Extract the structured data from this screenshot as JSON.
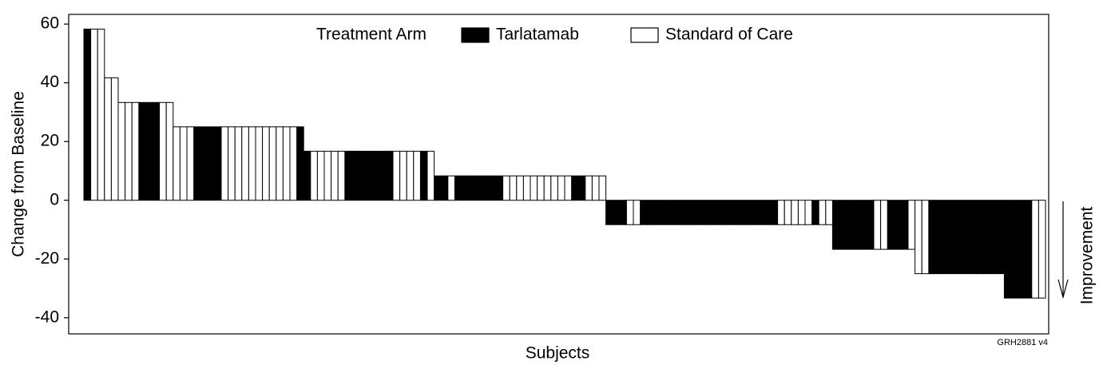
{
  "chart_data": {
    "type": "bar",
    "y_label": "Change from Baseline",
    "x_label": "Subjects",
    "legend_title": "Treatment Arm",
    "annotations": [
      "Improvement",
      "GRH2881 v4"
    ],
    "ylim": [
      -45.5,
      63.3
    ],
    "yticks": [
      -40,
      -20,
      0,
      20,
      40,
      60
    ],
    "series": [
      {
        "name": "Tarlatamab",
        "color": "#000000",
        "values": [
          58.3,
          null,
          null,
          null,
          null,
          null,
          null,
          null,
          33.3,
          33.3,
          33.3,
          null,
          null,
          null,
          null,
          null,
          25,
          25,
          25,
          25,
          null,
          null,
          null,
          null,
          null,
          null,
          null,
          null,
          null,
          null,
          null,
          25,
          16.7,
          null,
          null,
          null,
          null,
          null,
          16.7,
          16.7,
          16.7,
          16.7,
          16.7,
          16.7,
          16.7,
          null,
          null,
          null,
          null,
          16.7,
          null,
          8.3,
          8.3,
          null,
          8.3,
          8.3,
          8.3,
          8.3,
          8.3,
          8.3,
          8.3,
          null,
          null,
          null,
          null,
          null,
          null,
          null,
          null,
          null,
          null,
          8.3,
          8.3,
          null,
          null,
          null,
          -8.3,
          -8.3,
          -8.3,
          null,
          null,
          -8.3,
          -8.3,
          -8.3,
          -8.3,
          -8.3,
          -8.3,
          -8.3,
          -8.3,
          -8.3,
          -8.3,
          -8.3,
          -8.3,
          -8.3,
          -8.3,
          -8.3,
          -8.3,
          -8.3,
          -8.3,
          -8.3,
          -8.3,
          null,
          null,
          null,
          null,
          null,
          -8.3,
          null,
          null,
          -16.7,
          -16.7,
          -16.7,
          -16.7,
          -16.7,
          -16.7,
          null,
          null,
          -16.7,
          -16.7,
          -16.7,
          null,
          null,
          null,
          -25,
          -25,
          -25,
          -25,
          -25,
          -25,
          -25,
          -25,
          -25,
          -25,
          -25,
          -33.3,
          -33.3,
          -33.3,
          -33.3,
          null,
          null
        ]
      },
      {
        "name": "Standard of Care",
        "color": "#ffffff",
        "values": [
          null,
          58.3,
          58.3,
          41.7,
          41.7,
          33.3,
          33.3,
          33.3,
          null,
          null,
          null,
          33.3,
          33.3,
          25,
          25,
          25,
          null,
          null,
          null,
          null,
          25,
          25,
          25,
          25,
          25,
          25,
          25,
          25,
          25,
          25,
          25,
          null,
          null,
          16.7,
          16.7,
          16.7,
          16.7,
          16.7,
          null,
          null,
          null,
          null,
          null,
          null,
          null,
          16.7,
          16.7,
          16.7,
          16.7,
          null,
          16.7,
          null,
          null,
          8.3,
          null,
          null,
          null,
          null,
          null,
          null,
          null,
          8.3,
          8.3,
          8.3,
          8.3,
          8.3,
          8.3,
          8.3,
          8.3,
          8.3,
          8.3,
          null,
          null,
          8.3,
          8.3,
          8.3,
          null,
          null,
          null,
          -8.3,
          -8.3,
          null,
          null,
          null,
          null,
          null,
          null,
          null,
          null,
          null,
          null,
          null,
          null,
          null,
          null,
          null,
          null,
          null,
          null,
          null,
          null,
          -8.3,
          -8.3,
          -8.3,
          -8.3,
          -8.3,
          null,
          -8.3,
          -8.3,
          null,
          null,
          null,
          null,
          null,
          null,
          -16.7,
          -16.7,
          null,
          null,
          null,
          -16.7,
          -25,
          -25,
          null,
          null,
          null,
          null,
          null,
          null,
          null,
          null,
          null,
          null,
          null,
          null,
          null,
          null,
          null,
          -33.3,
          -33.3
        ]
      }
    ]
  }
}
